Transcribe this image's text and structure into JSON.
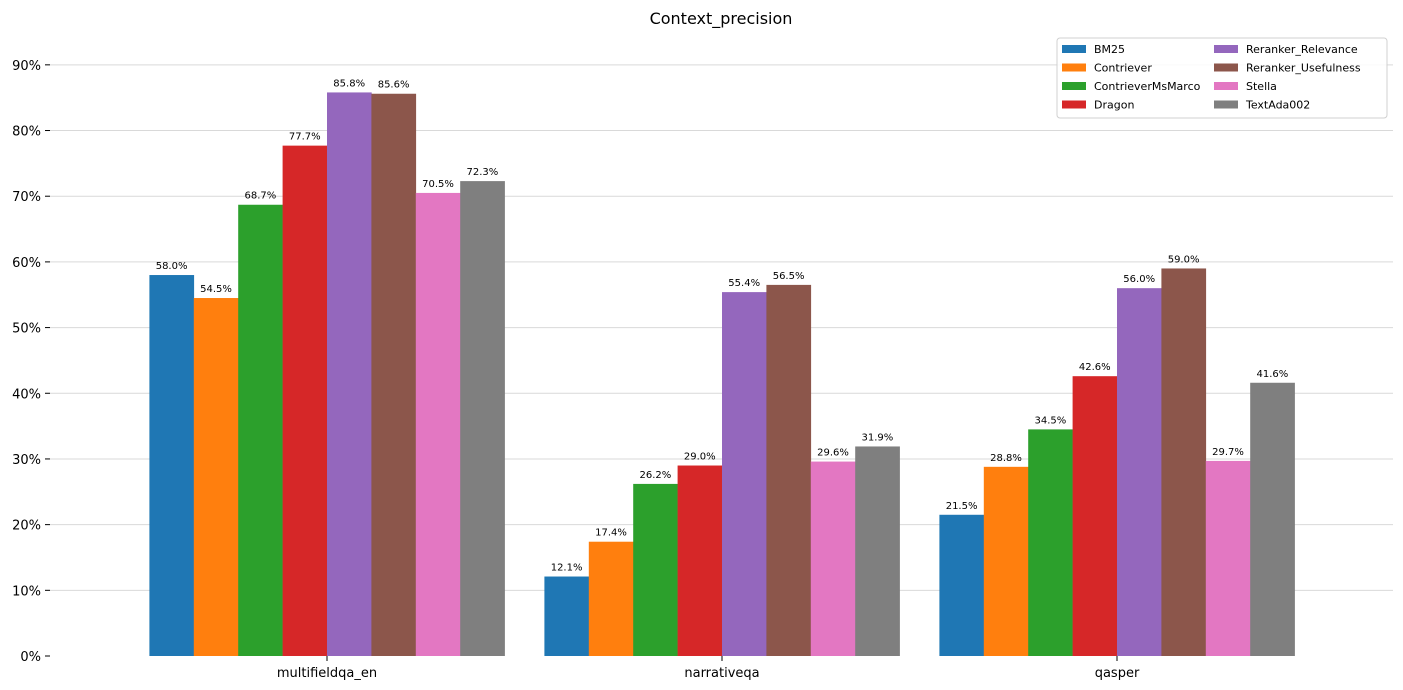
{
  "chart_data": {
    "type": "bar",
    "title": "Context_precision",
    "categories": [
      "multifieldqa_en",
      "narrativeqa",
      "qasper"
    ],
    "series": [
      {
        "name": "BM25",
        "color": "#1f77b4",
        "values": [
          58.0,
          12.1,
          21.5
        ]
      },
      {
        "name": "Contriever",
        "color": "#ff7f0e",
        "values": [
          54.5,
          17.4,
          28.8
        ]
      },
      {
        "name": "ContrieverMsMarco",
        "color": "#2ca02c",
        "values": [
          68.7,
          26.2,
          34.5
        ]
      },
      {
        "name": "Dragon",
        "color": "#d62728",
        "values": [
          77.7,
          29.0,
          42.6
        ]
      },
      {
        "name": "Reranker_Relevance",
        "color": "#9467bd",
        "values": [
          85.8,
          55.4,
          56.0
        ]
      },
      {
        "name": "Reranker_Usefulness",
        "color": "#8c564b",
        "values": [
          85.6,
          56.5,
          59.0
        ]
      },
      {
        "name": "Stella",
        "color": "#e377c2",
        "values": [
          70.5,
          29.6,
          29.7
        ]
      },
      {
        "name": "TextAda002",
        "color": "#7f7f7f",
        "values": [
          72.3,
          31.9,
          41.6
        ]
      }
    ],
    "value_label_suffix": "%",
    "ylim": [
      0,
      95
    ],
    "yticks": [
      0,
      10,
      20,
      30,
      40,
      50,
      60,
      70,
      80,
      90
    ],
    "ytick_labels": [
      "0%",
      "10%",
      "20%",
      "30%",
      "40%",
      "50%",
      "60%",
      "70%",
      "80%",
      "90%"
    ],
    "grid": "horizontal",
    "legend_position": "top-right",
    "legend_columns": 2
  }
}
